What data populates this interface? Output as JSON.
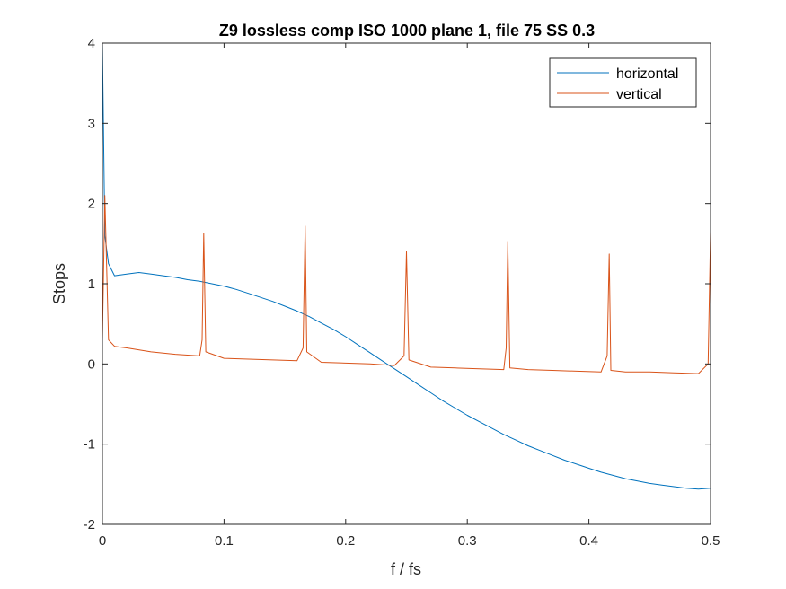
{
  "chart_data": {
    "type": "line",
    "title": "Z9 lossless comp ISO 1000 plane 1, file 75 SS 0.3",
    "xlabel": "f / fs",
    "ylabel": "Stops",
    "xlim": [
      0,
      0.5
    ],
    "ylim": [
      -2,
      4
    ],
    "xticks": [
      0,
      0.1,
      0.2,
      0.3,
      0.4,
      0.5
    ],
    "xtick_labels": [
      "0",
      "0.1",
      "0.2",
      "0.3",
      "0.4",
      "0.5"
    ],
    "yticks": [
      -2,
      -1,
      0,
      1,
      2,
      3,
      4
    ],
    "ytick_labels": [
      "-2",
      "-1",
      "0",
      "1",
      "2",
      "3",
      "4"
    ],
    "grid": false,
    "legend_position": "top-right",
    "series": [
      {
        "name": "horizontal",
        "color": "#0072BD",
        "x": [
          0,
          0.002,
          0.005,
          0.01,
          0.02,
          0.03,
          0.04,
          0.05,
          0.06,
          0.07,
          0.08,
          0.09,
          0.1,
          0.11,
          0.12,
          0.13,
          0.14,
          0.15,
          0.16,
          0.17,
          0.18,
          0.19,
          0.2,
          0.21,
          0.22,
          0.23,
          0.24,
          0.25,
          0.26,
          0.27,
          0.28,
          0.29,
          0.3,
          0.31,
          0.32,
          0.33,
          0.34,
          0.35,
          0.36,
          0.37,
          0.38,
          0.39,
          0.4,
          0.41,
          0.42,
          0.43,
          0.44,
          0.45,
          0.46,
          0.47,
          0.48,
          0.49,
          0.5
        ],
        "y": [
          4.0,
          1.6,
          1.25,
          1.1,
          1.12,
          1.14,
          1.12,
          1.1,
          1.08,
          1.05,
          1.03,
          1.0,
          0.97,
          0.93,
          0.88,
          0.83,
          0.78,
          0.72,
          0.66,
          0.59,
          0.51,
          0.43,
          0.34,
          0.24,
          0.14,
          0.04,
          -0.06,
          -0.16,
          -0.26,
          -0.36,
          -0.46,
          -0.55,
          -0.64,
          -0.72,
          -0.8,
          -0.88,
          -0.95,
          -1.02,
          -1.08,
          -1.14,
          -1.2,
          -1.25,
          -1.3,
          -1.35,
          -1.39,
          -1.43,
          -1.46,
          -1.49,
          -1.51,
          -1.53,
          -1.55,
          -1.56,
          -1.55
        ]
      },
      {
        "name": "vertical",
        "color": "#D95319",
        "x": [
          0,
          0.002,
          0.005,
          0.01,
          0.02,
          0.04,
          0.06,
          0.08,
          0.082,
          0.0833,
          0.085,
          0.1,
          0.12,
          0.14,
          0.16,
          0.165,
          0.1667,
          0.168,
          0.18,
          0.2,
          0.22,
          0.24,
          0.248,
          0.25,
          0.252,
          0.27,
          0.29,
          0.31,
          0.33,
          0.332,
          0.3333,
          0.335,
          0.35,
          0.37,
          0.39,
          0.41,
          0.415,
          0.4167,
          0.418,
          0.43,
          0.45,
          0.47,
          0.49,
          0.498,
          0.5
        ],
        "y": [
          0.3,
          2.1,
          0.3,
          0.22,
          0.2,
          0.15,
          0.12,
          0.1,
          0.3,
          1.63,
          0.15,
          0.07,
          0.06,
          0.05,
          0.04,
          0.2,
          1.72,
          0.15,
          0.02,
          0.01,
          0.0,
          -0.02,
          0.1,
          1.4,
          0.05,
          -0.04,
          -0.05,
          -0.06,
          -0.07,
          0.2,
          1.53,
          -0.05,
          -0.07,
          -0.08,
          -0.09,
          -0.1,
          0.1,
          1.37,
          -0.08,
          -0.1,
          -0.1,
          -0.11,
          -0.12,
          0.0,
          1.65
        ]
      }
    ]
  }
}
